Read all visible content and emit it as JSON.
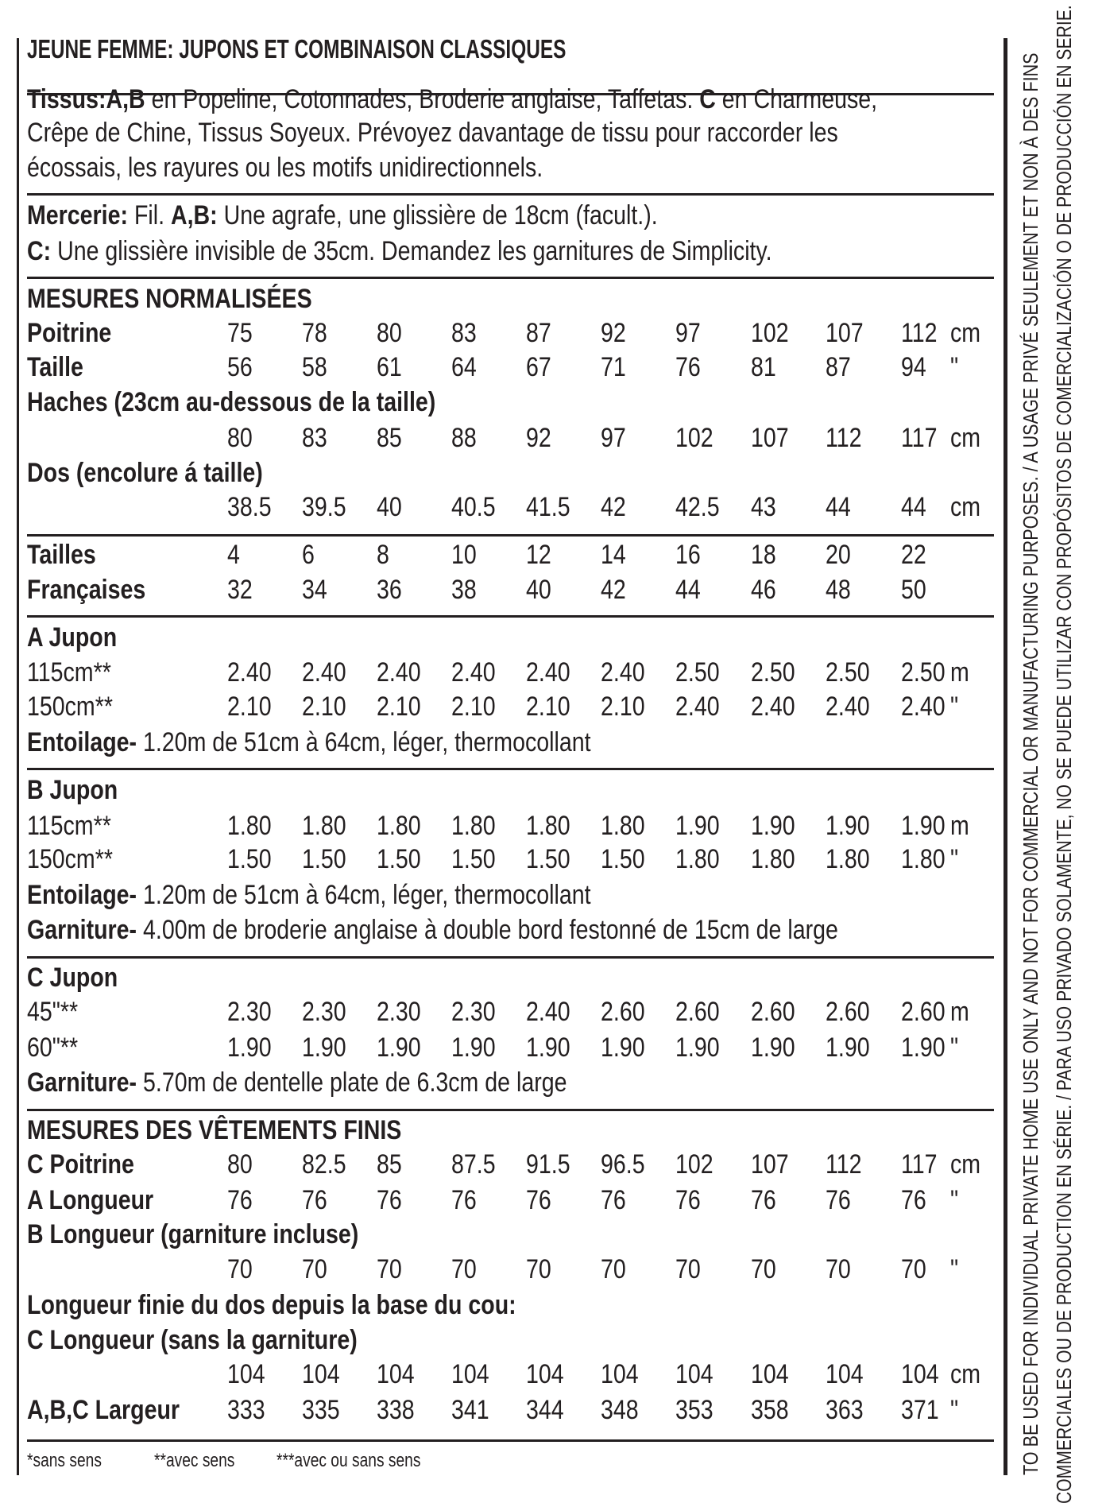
{
  "title": "JEUNE FEMME: JUPONS ET COMBINAISON CLASSIQUES",
  "tissus": {
    "label": "Tissus:",
    "ab": "A,B",
    "ab_text": " en Popeline, Cotonnades, Broderie anglaise, Taffetas. ",
    "c": "C",
    "c_text": " en Charmeuse,",
    "line2": "Crêpe de Chine, Tissus Soyeux. Prévoyez davantage de tissu pour raccorder les",
    "line3": "écossais, les rayures ou les motifs unidirectionnels."
  },
  "mercerie": {
    "label": "Mercerie:",
    "fil": " Fil. ",
    "ab": "A,B:",
    "ab_text": " Une agrafe, une glissière de 18cm (facult.).",
    "c": "C:",
    "c_text": " Une glissière invisible de 35cm. Demandez les garnitures de Simplicity."
  },
  "mesures": {
    "heading": "MESURES NORMALISÉES",
    "poitrine": {
      "label": "Poitrine",
      "values": [
        "75",
        "78",
        "80",
        "83",
        "87",
        "92",
        "97",
        "102",
        "107",
        "112"
      ],
      "unit": "cm"
    },
    "taille": {
      "label": "Taille",
      "values": [
        "56",
        "58",
        "61",
        "64",
        "67",
        "71",
        "76",
        "81",
        "87",
        "94"
      ],
      "unit": "\""
    },
    "haches": {
      "label": "Haches (23cm au-dessous de la taille)",
      "values": [
        "80",
        "83",
        "85",
        "88",
        "92",
        "97",
        "102",
        "107",
        "112",
        "117"
      ],
      "unit": "cm"
    },
    "dos": {
      "label": "Dos (encolure á taille)",
      "values": [
        "38.5",
        "39.5",
        "40",
        "40.5",
        "41.5",
        "42",
        "42.5",
        "43",
        "44",
        "44"
      ],
      "unit": "cm"
    }
  },
  "tailles": {
    "tailles": {
      "label": "Tailles",
      "values": [
        "4",
        "6",
        "8",
        "10",
        "12",
        "14",
        "16",
        "18",
        "20",
        "22"
      ]
    },
    "francaises": {
      "label": "Françaises",
      "values": [
        "32",
        "34",
        "36",
        "38",
        "40",
        "42",
        "44",
        "46",
        "48",
        "50"
      ]
    }
  },
  "a_jupon": {
    "heading": "A Jupon",
    "r115": {
      "label": "115cm**",
      "values": [
        "2.40",
        "2.40",
        "2.40",
        "2.40",
        "2.40",
        "2.40",
        "2.50",
        "2.50",
        "2.50",
        "2.50"
      ],
      "unit": "m"
    },
    "r150": {
      "label": "150cm**",
      "values": [
        "2.10",
        "2.10",
        "2.10",
        "2.10",
        "2.10",
        "2.10",
        "2.40",
        "2.40",
        "2.40",
        "2.40"
      ],
      "unit": "\""
    },
    "entoilage_label": "Entoilage-",
    "entoilage_text": " 1.20m de 51cm à 64cm, léger, thermocollant"
  },
  "b_jupon": {
    "heading": "B Jupon",
    "r115": {
      "label": "115cm**",
      "values": [
        "1.80",
        "1.80",
        "1.80",
        "1.80",
        "1.80",
        "1.80",
        "1.90",
        "1.90",
        "1.90",
        "1.90"
      ],
      "unit": "m"
    },
    "r150": {
      "label": "150cm**",
      "values": [
        "1.50",
        "1.50",
        "1.50",
        "1.50",
        "1.50",
        "1.50",
        "1.80",
        "1.80",
        "1.80",
        "1.80"
      ],
      "unit": "\""
    },
    "entoilage_label": "Entoilage-",
    "entoilage_text": " 1.20m de 51cm à 64cm, léger, thermocollant",
    "garniture_label": "Garniture-",
    "garniture_text": " 4.00m de  broderie anglaise à double bord festonné de 15cm de large"
  },
  "c_jupon": {
    "heading": "C Jupon",
    "r45": {
      "label": "45\"**",
      "values": [
        "2.30",
        "2.30",
        "2.30",
        "2.30",
        "2.40",
        "2.60",
        "2.60",
        "2.60",
        "2.60",
        "2.60"
      ],
      "unit": "m"
    },
    "r60": {
      "label": "60\"**",
      "values": [
        "1.90",
        "1.90",
        "1.90",
        "1.90",
        "1.90",
        "1.90",
        "1.90",
        "1.90",
        "1.90",
        "1.90"
      ],
      "unit": "\""
    },
    "garniture_label": "Garniture-",
    "garniture_text": " 5.70m de dentelle plate de 6.3cm de large"
  },
  "finis": {
    "heading": "MESURES DES VÊTEMENTS FINIS",
    "c_poitrine": {
      "label": "C Poitrine",
      "values": [
        "80",
        "82.5",
        "85",
        "87.5",
        "91.5",
        "96.5",
        "102",
        "107",
        "112",
        "117"
      ],
      "unit": "cm"
    },
    "a_longueur": {
      "label": "A Longueur",
      "values": [
        "76",
        "76",
        "76",
        "76",
        "76",
        "76",
        "76",
        "76",
        "76",
        "76"
      ],
      "unit": "\""
    },
    "b_longueur": {
      "label": "B Longueur (garniture incluse)",
      "values": [
        "70",
        "70",
        "70",
        "70",
        "70",
        "70",
        "70",
        "70",
        "70",
        "70"
      ],
      "unit": "\""
    },
    "dos_heading": "Longueur finie du dos depuis la base du cou:",
    "c_longueur": {
      "label": "C Longueur (sans la garniture)",
      "values": [
        "104",
        "104",
        "104",
        "104",
        "104",
        "104",
        "104",
        "104",
        "104",
        "104"
      ],
      "unit": "cm"
    },
    "largeur": {
      "label": "A,B,C Largeur",
      "values": [
        "333",
        "335",
        "338",
        "341",
        "344",
        "348",
        "353",
        "358",
        "363",
        "371"
      ],
      "unit": "\""
    }
  },
  "footnote": {
    "sans": "*sans sens",
    "avec": "**avec sens",
    "avec_ou_sans": "***avec ou sans sens"
  },
  "disclaimer": {
    "line1": "TO BE USED FOR INDIVIDUAL PRIVATE HOME USE ONLY AND NOT FOR COMMERCIAL OR MANUFACTURING PURPOSES. / A USAGE PRIVÉ SEULEMENT ET NON À DES FINS",
    "line2": "COMMERCIALES OU DE PRODUCTION EN SÉRIE. / PARA USO PRIVADO SOLAMENTE, NO SE PUEDE UTILIZAR CON PROPÓSITOS DE COMERCIALIZACIÓN O DE PRODUCCIÓN EN SERIE."
  }
}
